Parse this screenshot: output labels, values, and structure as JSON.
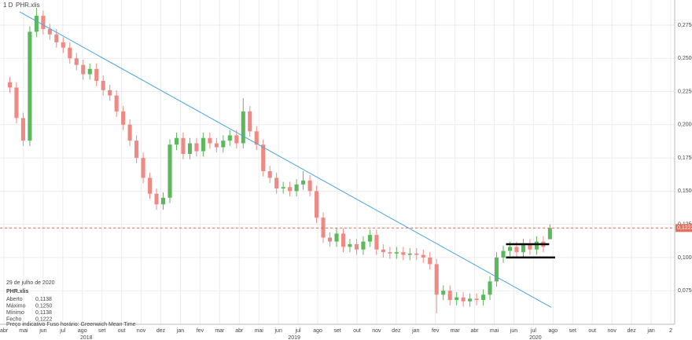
{
  "chart_data": {
    "type": "candlestick",
    "header": {
      "interval": "1 D",
      "symbol": "PHR.xlis"
    },
    "x": [
      0.3,
      0.64,
      0.98,
      1.32,
      1.66,
      2,
      2.34,
      2.68,
      3.02,
      3.36,
      3.7,
      4.04,
      4.38,
      4.72,
      5.06,
      5.4,
      5.74,
      6.08,
      6.42,
      6.76,
      7.1,
      7.44,
      7.78,
      8.12,
      8.46,
      8.8,
      9.14,
      9.48,
      9.82,
      10.16,
      10.5,
      10.84,
      11.18,
      11.52,
      11.86,
      12.2,
      12.54,
      12.88,
      13.22,
      13.56,
      13.9,
      14.24,
      14.58,
      14.92,
      15.26,
      15.6,
      15.94,
      16.28,
      16.62,
      16.96,
      17.3,
      17.64,
      17.98,
      18.32,
      18.66,
      19,
      19.34,
      19.68,
      20.02,
      20.36,
      20.7,
      21.04,
      21.38,
      21.72,
      22.06,
      22.4,
      22.74,
      23.08,
      23.42,
      23.76,
      24.1,
      24.44,
      24.78,
      25.12,
      25.46,
      25.8,
      26.14,
      26.48,
      26.82,
      27.16,
      27.5,
      27.84
    ],
    "open": [
      0.232,
      0.228,
      0.205,
      0.188,
      0.27,
      0.282,
      0.272,
      0.268,
      0.262,
      0.258,
      0.25,
      0.245,
      0.238,
      0.242,
      0.233,
      0.226,
      0.222,
      0.21,
      0.2,
      0.188,
      0.175,
      0.16,
      0.148,
      0.14,
      0.145,
      0.185,
      0.19,
      0.178,
      0.186,
      0.18,
      0.19,
      0.186,
      0.183,
      0.188,
      0.192,
      0.186,
      0.21,
      0.195,
      0.185,
      0.165,
      0.16,
      0.152,
      0.153,
      0.15,
      0.155,
      0.158,
      0.15,
      0.13,
      0.115,
      0.112,
      0.118,
      0.108,
      0.11,
      0.106,
      0.112,
      0.117,
      0.106,
      0.104,
      0.103,
      0.104,
      0.102,
      0.103,
      0.102,
      0.1,
      0.095,
      0.072,
      0.075,
      0.068,
      0.07,
      0.067,
      0.069,
      0.068,
      0.072,
      0.082,
      0.1,
      0.105,
      0.108,
      0.104,
      0.11,
      0.106,
      0.112,
      0.1138
    ],
    "high": [
      0.236,
      0.232,
      0.209,
      0.274,
      0.288,
      0.286,
      0.276,
      0.272,
      0.266,
      0.262,
      0.254,
      0.249,
      0.246,
      0.246,
      0.237,
      0.23,
      0.226,
      0.214,
      0.204,
      0.192,
      0.179,
      0.164,
      0.152,
      0.149,
      0.189,
      0.194,
      0.194,
      0.19,
      0.19,
      0.194,
      0.194,
      0.19,
      0.192,
      0.196,
      0.196,
      0.22,
      0.214,
      0.199,
      0.189,
      0.169,
      0.164,
      0.157,
      0.157,
      0.159,
      0.165,
      0.162,
      0.154,
      0.134,
      0.119,
      0.122,
      0.122,
      0.114,
      0.114,
      0.116,
      0.121,
      0.121,
      0.11,
      0.108,
      0.108,
      0.108,
      0.107,
      0.107,
      0.106,
      0.104,
      0.099,
      0.079,
      0.079,
      0.074,
      0.074,
      0.073,
      0.073,
      0.076,
      0.086,
      0.104,
      0.109,
      0.112,
      0.112,
      0.114,
      0.114,
      0.116,
      0.116,
      0.125
    ],
    "low": [
      0.224,
      0.201,
      0.184,
      0.184,
      0.266,
      0.268,
      0.264,
      0.258,
      0.254,
      0.246,
      0.241,
      0.234,
      0.234,
      0.229,
      0.222,
      0.218,
      0.206,
      0.196,
      0.184,
      0.171,
      0.156,
      0.144,
      0.136,
      0.136,
      0.141,
      0.181,
      0.174,
      0.174,
      0.176,
      0.176,
      0.182,
      0.179,
      0.179,
      0.184,
      0.182,
      0.182,
      0.191,
      0.181,
      0.161,
      0.156,
      0.148,
      0.148,
      0.146,
      0.146,
      0.151,
      0.146,
      0.126,
      0.111,
      0.108,
      0.108,
      0.104,
      0.104,
      0.102,
      0.102,
      0.108,
      0.102,
      0.1,
      0.099,
      0.099,
      0.098,
      0.098,
      0.098,
      0.096,
      0.091,
      0.058,
      0.068,
      0.064,
      0.064,
      0.063,
      0.063,
      0.064,
      0.064,
      0.068,
      0.078,
      0.096,
      0.101,
      0.1,
      0.1,
      0.102,
      0.102,
      0.104,
      0.1138
    ],
    "close": [
      0.228,
      0.205,
      0.188,
      0.27,
      0.282,
      0.272,
      0.268,
      0.262,
      0.258,
      0.25,
      0.245,
      0.238,
      0.242,
      0.233,
      0.226,
      0.222,
      0.21,
      0.2,
      0.188,
      0.175,
      0.16,
      0.148,
      0.14,
      0.145,
      0.185,
      0.19,
      0.178,
      0.186,
      0.18,
      0.19,
      0.186,
      0.183,
      0.188,
      0.192,
      0.186,
      0.21,
      0.195,
      0.185,
      0.165,
      0.16,
      0.152,
      0.153,
      0.15,
      0.155,
      0.158,
      0.15,
      0.13,
      0.115,
      0.112,
      0.118,
      0.108,
      0.11,
      0.106,
      0.112,
      0.117,
      0.106,
      0.104,
      0.103,
      0.104,
      0.102,
      0.103,
      0.102,
      0.1,
      0.095,
      0.072,
      0.075,
      0.068,
      0.07,
      0.067,
      0.069,
      0.068,
      0.072,
      0.082,
      0.1,
      0.105,
      0.108,
      0.104,
      0.11,
      0.106,
      0.112,
      0.108,
      0.1222
    ],
    "up_color": "#5cb85c",
    "down_color": "#ee8a86",
    "xlim": [
      -0.2,
      34.2
    ],
    "ylim": [
      0.0497,
      0.2939
    ],
    "xticks": [
      {
        "value": 0,
        "label": "abr"
      },
      {
        "value": 1,
        "label": "mai"
      },
      {
        "value": 2,
        "label": "jun"
      },
      {
        "value": 3,
        "label": "jul"
      },
      {
        "value": 4,
        "label": "ago"
      },
      {
        "value": 5,
        "label": "set"
      },
      {
        "value": 6,
        "label": "out"
      },
      {
        "value": 7,
        "label": "nov"
      },
      {
        "value": 8,
        "label": "dez"
      },
      {
        "value": 9,
        "label": "jan"
      },
      {
        "value": 10,
        "label": "fev"
      },
      {
        "value": 11,
        "label": "mar"
      },
      {
        "value": 12,
        "label": "abr"
      },
      {
        "value": 13,
        "label": "mai"
      },
      {
        "value": 14,
        "label": "jun"
      },
      {
        "value": 15,
        "label": "jul"
      },
      {
        "value": 16,
        "label": "ago"
      },
      {
        "value": 17,
        "label": "set"
      },
      {
        "value": 18,
        "label": "out"
      },
      {
        "value": 19,
        "label": "nov"
      },
      {
        "value": 20,
        "label": "dez"
      },
      {
        "value": 21,
        "label": "jan"
      },
      {
        "value": 22,
        "label": "fev"
      },
      {
        "value": 23,
        "label": "mar"
      },
      {
        "value": 24,
        "label": "abr"
      },
      {
        "value": 25,
        "label": "mai"
      },
      {
        "value": 26,
        "label": "jun"
      },
      {
        "value": 27,
        "label": "jul"
      },
      {
        "value": 28,
        "label": "ago"
      },
      {
        "value": 29,
        "label": "set"
      },
      {
        "value": 30,
        "label": "out"
      },
      {
        "value": 31,
        "label": "nov"
      },
      {
        "value": 32,
        "label": "dez"
      },
      {
        "value": 33,
        "label": "jan"
      },
      {
        "value": 34,
        "label": "2"
      }
    ],
    "year_ticks": [
      {
        "value": 4.2,
        "label": "2018"
      },
      {
        "value": 14.8,
        "label": "2019"
      },
      {
        "value": 27.1,
        "label": "2020"
      }
    ],
    "yticks": [
      {
        "value": 0.075,
        "label": "0,0750"
      },
      {
        "value": 0.1,
        "label": "0,1000"
      },
      {
        "value": 0.125,
        "label": "0,1250"
      },
      {
        "value": 0.15,
        "label": "0,1500"
      },
      {
        "value": 0.175,
        "label": "0,1750"
      },
      {
        "value": 0.2,
        "label": "0,2000"
      },
      {
        "value": 0.225,
        "label": "0,2250"
      },
      {
        "value": 0.25,
        "label": "0,2500"
      },
      {
        "value": 0.275,
        "label": "0,2750"
      }
    ],
    "grid": true,
    "last_price": {
      "value": 0.1222,
      "label": "0,1222",
      "color": "#e07060"
    },
    "trendline": {
      "x": [
        0.8,
        27.9
      ],
      "y": [
        0.285,
        0.0625
      ],
      "color": "#4aa3df"
    },
    "levels": [
      {
        "x": [
          25.6,
          27.8
        ],
        "y": 0.11
      },
      {
        "x": [
          25.6,
          28.1
        ],
        "y": 0.1
      }
    ],
    "level_color": "#000000",
    "info": {
      "date": "29 de julho de 2020",
      "symbol": "PHR.xlis",
      "rows": [
        {
          "label": "Aberto",
          "value": "0,1138"
        },
        {
          "label": "Máximo",
          "value": "0,1250"
        },
        {
          "label": "Mínimo",
          "value": "0,1138"
        },
        {
          "label": "Fecho",
          "value": "0,1222"
        }
      ],
      "footer": "Preço indicativo    Fuso horário: Greenwich Mean Time"
    }
  }
}
